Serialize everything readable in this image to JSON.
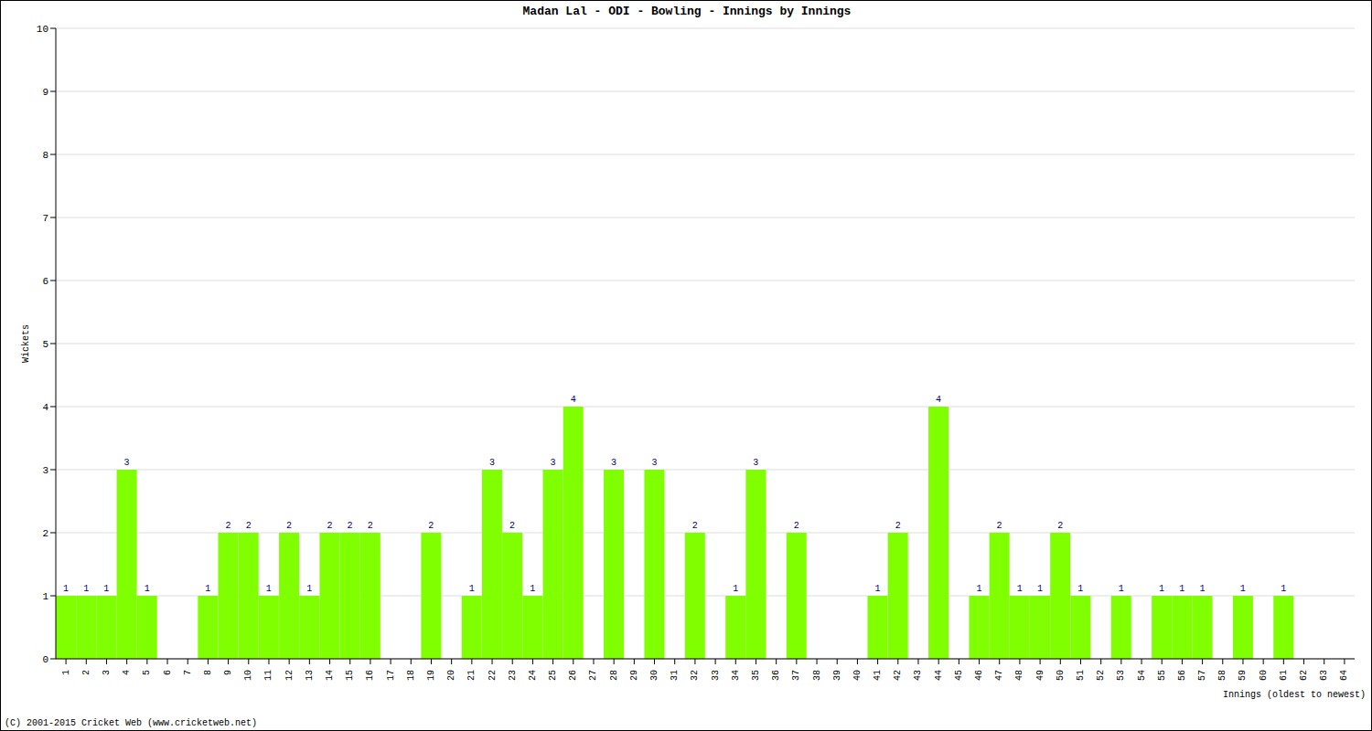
{
  "chart_data": {
    "type": "bar",
    "title": "Madan Lal - ODI - Bowling - Innings by Innings",
    "x_label": "Innings (oldest to newest)",
    "y_label": "Wickets",
    "source": "(C) 2001-2015 Cricket Web (www.cricketweb.net)",
    "categories": [
      "1",
      "2",
      "3",
      "4",
      "5",
      "6",
      "7",
      "8",
      "9",
      "10",
      "11",
      "12",
      "13",
      "14",
      "15",
      "16",
      "17",
      "18",
      "19",
      "20",
      "21",
      "22",
      "23",
      "24",
      "25",
      "26",
      "27",
      "28",
      "29",
      "30",
      "31",
      "32",
      "33",
      "34",
      "35",
      "36",
      "37",
      "38",
      "39",
      "40",
      "41",
      "42",
      "43",
      "44",
      "45",
      "46",
      "47",
      "48",
      "49",
      "50",
      "51",
      "52",
      "53",
      "54",
      "55",
      "56",
      "57",
      "58",
      "59",
      "60",
      "61",
      "62",
      "63",
      "64"
    ],
    "values": [
      1,
      1,
      1,
      3,
      1,
      0,
      0,
      1,
      2,
      2,
      1,
      2,
      1,
      2,
      2,
      2,
      0,
      0,
      2,
      0,
      1,
      3,
      2,
      1,
      3,
      4,
      0,
      3,
      0,
      3,
      0,
      2,
      0,
      1,
      3,
      0,
      2,
      0,
      0,
      0,
      1,
      2,
      0,
      4,
      0,
      1,
      2,
      1,
      1,
      2,
      1,
      0,
      1,
      0,
      1,
      1,
      1,
      0,
      1,
      0,
      1,
      0,
      0,
      0
    ],
    "color": "#7fff00",
    "ylim": [
      0,
      10
    ],
    "yticks": [
      0,
      1,
      2,
      3,
      4,
      5,
      6,
      7,
      8,
      9,
      10
    ],
    "grid": true,
    "data_labels": true
  }
}
